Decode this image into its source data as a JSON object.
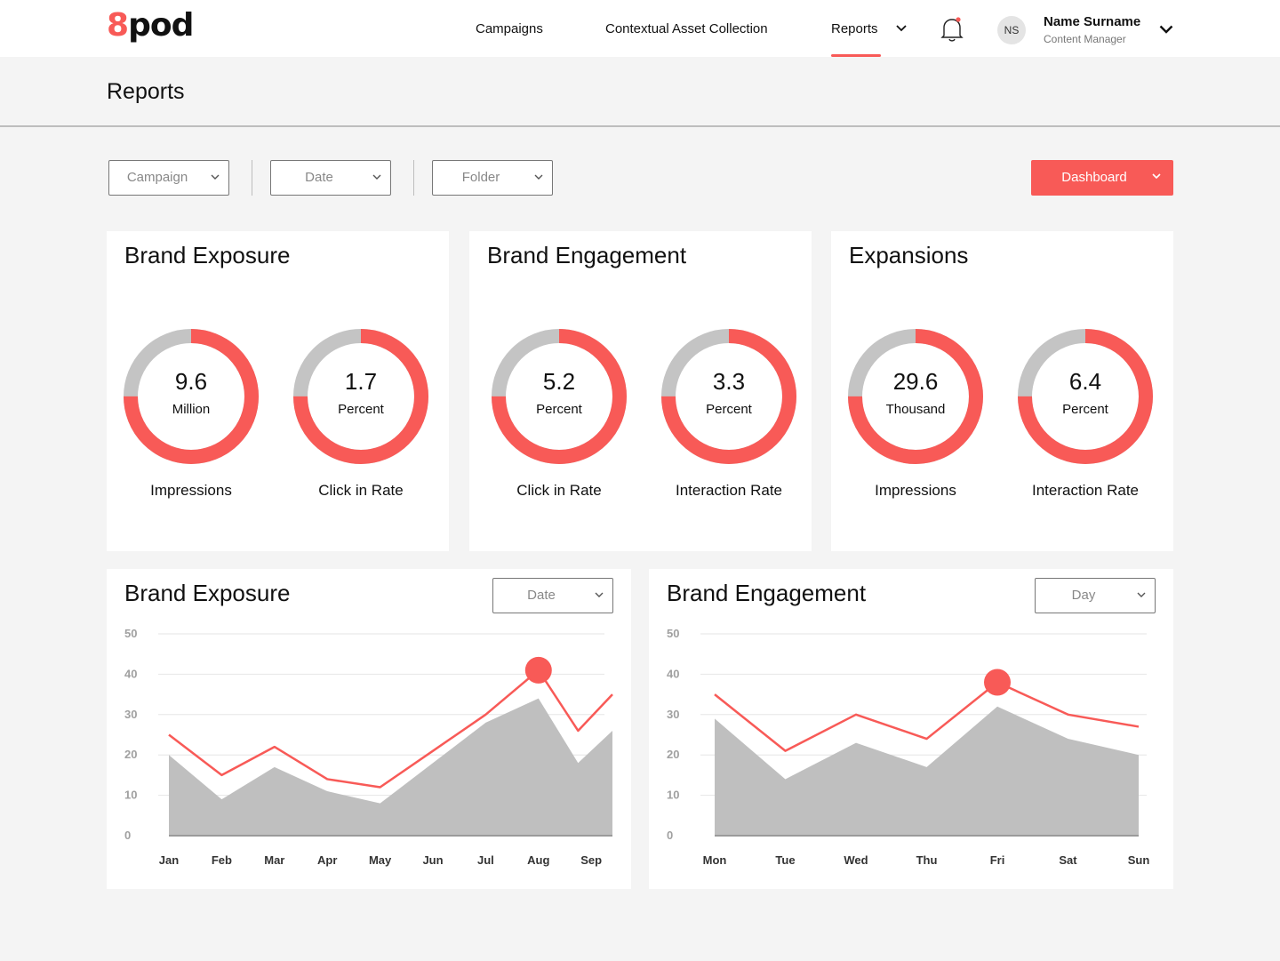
{
  "header": {
    "logo_eight": "8",
    "logo_pod": "pod",
    "nav": [
      "Campaigns",
      "Contextual Asset Collection",
      "Reports"
    ],
    "active_nav": "Reports",
    "user": {
      "initials": "NS",
      "name": "Name Surname",
      "role": "Content Manager"
    },
    "accent": "#f85a57"
  },
  "page": {
    "title": "Reports"
  },
  "filters": {
    "campaign": "Campaign",
    "date": "Date",
    "folder": "Folder",
    "view": "Dashboard"
  },
  "cards": [
    {
      "title": "Brand Exposure",
      "metrics": [
        {
          "value": "9.6",
          "unit": "Million",
          "caption": "Impressions",
          "fill": 0.75
        },
        {
          "value": "1.7",
          "unit": "Percent",
          "caption": "Click in Rate",
          "fill": 0.75
        }
      ]
    },
    {
      "title": "Brand Engagement",
      "metrics": [
        {
          "value": "5.2",
          "unit": "Percent",
          "caption": "Click in Rate",
          "fill": 0.75
        },
        {
          "value": "3.3",
          "unit": "Percent",
          "caption": "Interaction Rate",
          "fill": 0.75
        }
      ]
    },
    {
      "title": "Expansions",
      "metrics": [
        {
          "value": "29.6",
          "unit": "Thousand",
          "caption": "Impressions",
          "fill": 0.75
        },
        {
          "value": "6.4",
          "unit": "Percent",
          "caption": "Interaction Rate",
          "fill": 0.75
        }
      ]
    }
  ],
  "charts": {
    "exposure": {
      "title": "Brand Exposure",
      "filter": "Date"
    },
    "engagement": {
      "title": "Brand Engagement",
      "filter": "Day"
    }
  },
  "chart_data": [
    {
      "type": "area",
      "title": "Brand Exposure",
      "categories": [
        "Jan",
        "Feb",
        "Mar",
        "Apr",
        "May",
        "Jun",
        "Jul",
        "Aug",
        "Sep"
      ],
      "yticks": [
        0,
        10,
        20,
        30,
        40,
        50
      ],
      "ylim": [
        0,
        50
      ],
      "grid": true,
      "series": [
        {
          "kind": "line",
          "color": "#f85a57",
          "values": [
            25,
            15,
            22,
            14,
            12,
            21,
            30,
            41,
            26,
            35
          ],
          "x": [
            0,
            1,
            2,
            3,
            4,
            5,
            6,
            7,
            7.75,
            8.75
          ]
        },
        {
          "kind": "area",
          "color": "#bfbfbf",
          "values": [
            20,
            9,
            17,
            11,
            8,
            18,
            28,
            34,
            18,
            26
          ],
          "x": [
            0,
            1,
            2,
            3,
            4,
            5,
            6,
            7,
            7.75,
            8.75
          ]
        }
      ],
      "highlight": {
        "x": 7,
        "value": 41
      }
    },
    {
      "type": "area",
      "title": "Brand Engagement",
      "categories": [
        "Mon",
        "Tue",
        "Wed",
        "Thu",
        "Fri",
        "Sat",
        "Sun"
      ],
      "yticks": [
        0,
        10,
        20,
        30,
        40,
        50
      ],
      "ylim": [
        0,
        50
      ],
      "grid": true,
      "series": [
        {
          "kind": "line",
          "color": "#f85a57",
          "values": [
            35,
            21,
            30,
            24,
            38,
            30,
            27
          ]
        },
        {
          "kind": "area",
          "color": "#bfbfbf",
          "values": [
            29,
            14,
            23,
            17,
            32,
            24,
            20
          ]
        }
      ],
      "highlight": {
        "x": 4,
        "value": 38
      }
    }
  ]
}
